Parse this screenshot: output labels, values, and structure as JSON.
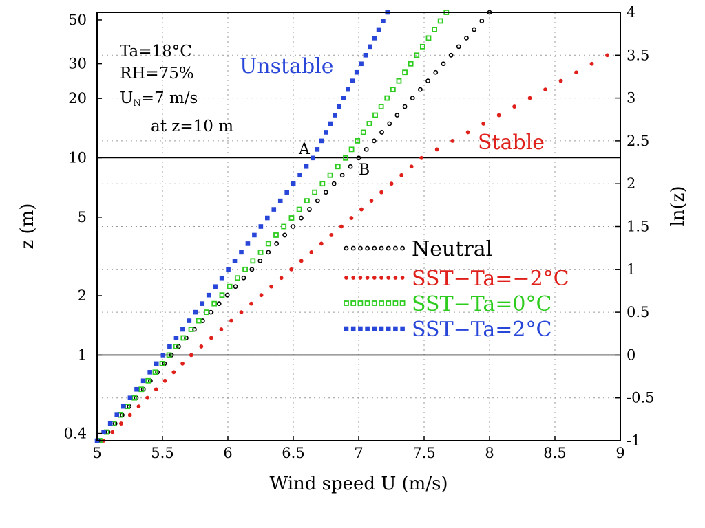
{
  "chart_data": {
    "type": "scatter",
    "xlabel": "Wind speed U (m/s)",
    "ylabel_left": "z (m)",
    "ylabel_right": "ln(z)",
    "xlim": [
      5,
      9
    ],
    "ylim_lnz": [
      -1,
      4
    ],
    "y_scale": "log",
    "grid": true,
    "legend_placement": "center-right",
    "x_ticks": [
      "5",
      "5.5",
      "6",
      "6.5",
      "7",
      "7.5",
      "8",
      "8.5",
      "9"
    ],
    "y_left_ticks": [
      {
        "z": 0.4,
        "label": "0.4"
      },
      {
        "z": 1,
        "label": "1"
      },
      {
        "z": 2,
        "label": "2"
      },
      {
        "z": 5,
        "label": "5"
      },
      {
        "z": 10,
        "label": "10"
      },
      {
        "z": 20,
        "label": "20"
      },
      {
        "z": 30,
        "label": "30"
      },
      {
        "z": 50,
        "label": "50"
      }
    ],
    "y_right_ticks": [
      "-1",
      "-0.5",
      "0",
      "0.5",
      "1",
      "1.5",
      "2",
      "2.5",
      "3",
      "3.5",
      "4"
    ],
    "reference_lines_z": [
      1,
      10
    ],
    "conditions": {
      "line1": "Ta=18°C",
      "line2": "RH=75%",
      "line3_prefix": "U",
      "line3_sub": "N",
      "line3_suffix": "=7  m/s",
      "line4": "at z=10  m"
    },
    "regime_labels": {
      "unstable": "Unstable",
      "stable": "Stable"
    },
    "point_labels": {
      "A": "A",
      "B": "B"
    },
    "series": [
      {
        "name": "Neutral",
        "color": "#000000",
        "marker": "open-circle",
        "lnz": [
          -1.0,
          0.15,
          2.3,
          4.0
        ],
        "u": [
          5.03,
          5.65,
          7.0,
          8.0
        ]
      },
      {
        "name": "SST−Ta=−2°C",
        "color": "#e0201b",
        "marker": "filled-circle",
        "lnz": [
          -1.0,
          0.0,
          2.3,
          3.5
        ],
        "u": [
          5.05,
          5.72,
          7.48,
          8.9
        ]
      },
      {
        "name": "SST−Ta=0°C",
        "color": "#2ecc1f",
        "marker": "open-square",
        "lnz": [
          -1.0,
          0.15,
          2.3,
          4.0
        ],
        "u": [
          5.02,
          5.63,
          6.9,
          7.67
        ]
      },
      {
        "name": "SST−Ta=2°C",
        "color": "#2846d8",
        "marker": "filled-square",
        "lnz": [
          -1.0,
          0.15,
          2.3,
          4.0
        ],
        "u": [
          5.0,
          5.58,
          6.65,
          7.22
        ]
      }
    ]
  }
}
